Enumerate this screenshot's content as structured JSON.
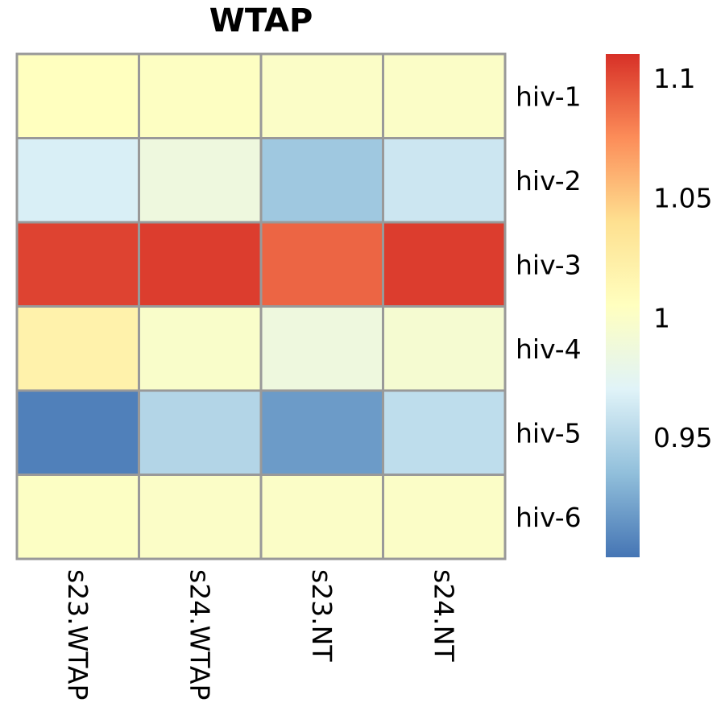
{
  "chart_data": {
    "type": "heatmap",
    "title": "WTAP",
    "rows": [
      "hiv-1",
      "hiv-2",
      "hiv-3",
      "hiv-4",
      "hiv-5",
      "hiv-6"
    ],
    "columns": [
      "s23.WTAP",
      "s24.WTAP",
      "s23.NT",
      "s24.NT"
    ],
    "values": [
      [
        1.005,
        1.003,
        1.0,
        1.0
      ],
      [
        0.967,
        0.986,
        0.941,
        0.961
      ],
      [
        1.103,
        1.105,
        1.09,
        1.105
      ],
      [
        1.02,
        0.998,
        0.986,
        0.994
      ],
      [
        0.905,
        0.95,
        0.918,
        0.955
      ],
      [
        1.002,
        1.0,
        1.0,
        1.0
      ]
    ],
    "color_scale": {
      "min": 0.9,
      "max": 1.11,
      "palette": [
        "#4575B4",
        "#91BFDB",
        "#E0F3F8",
        "#FFFFBF",
        "#FEE090",
        "#FC8D59",
        "#D73027"
      ],
      "ticks": [
        1.1,
        1.05,
        1,
        0.95
      ],
      "tick_labels": [
        "1.1",
        "1.05",
        "1",
        "0.95"
      ]
    },
    "cell_border_color": "#999999",
    "xlabel": "",
    "ylabel": ""
  }
}
